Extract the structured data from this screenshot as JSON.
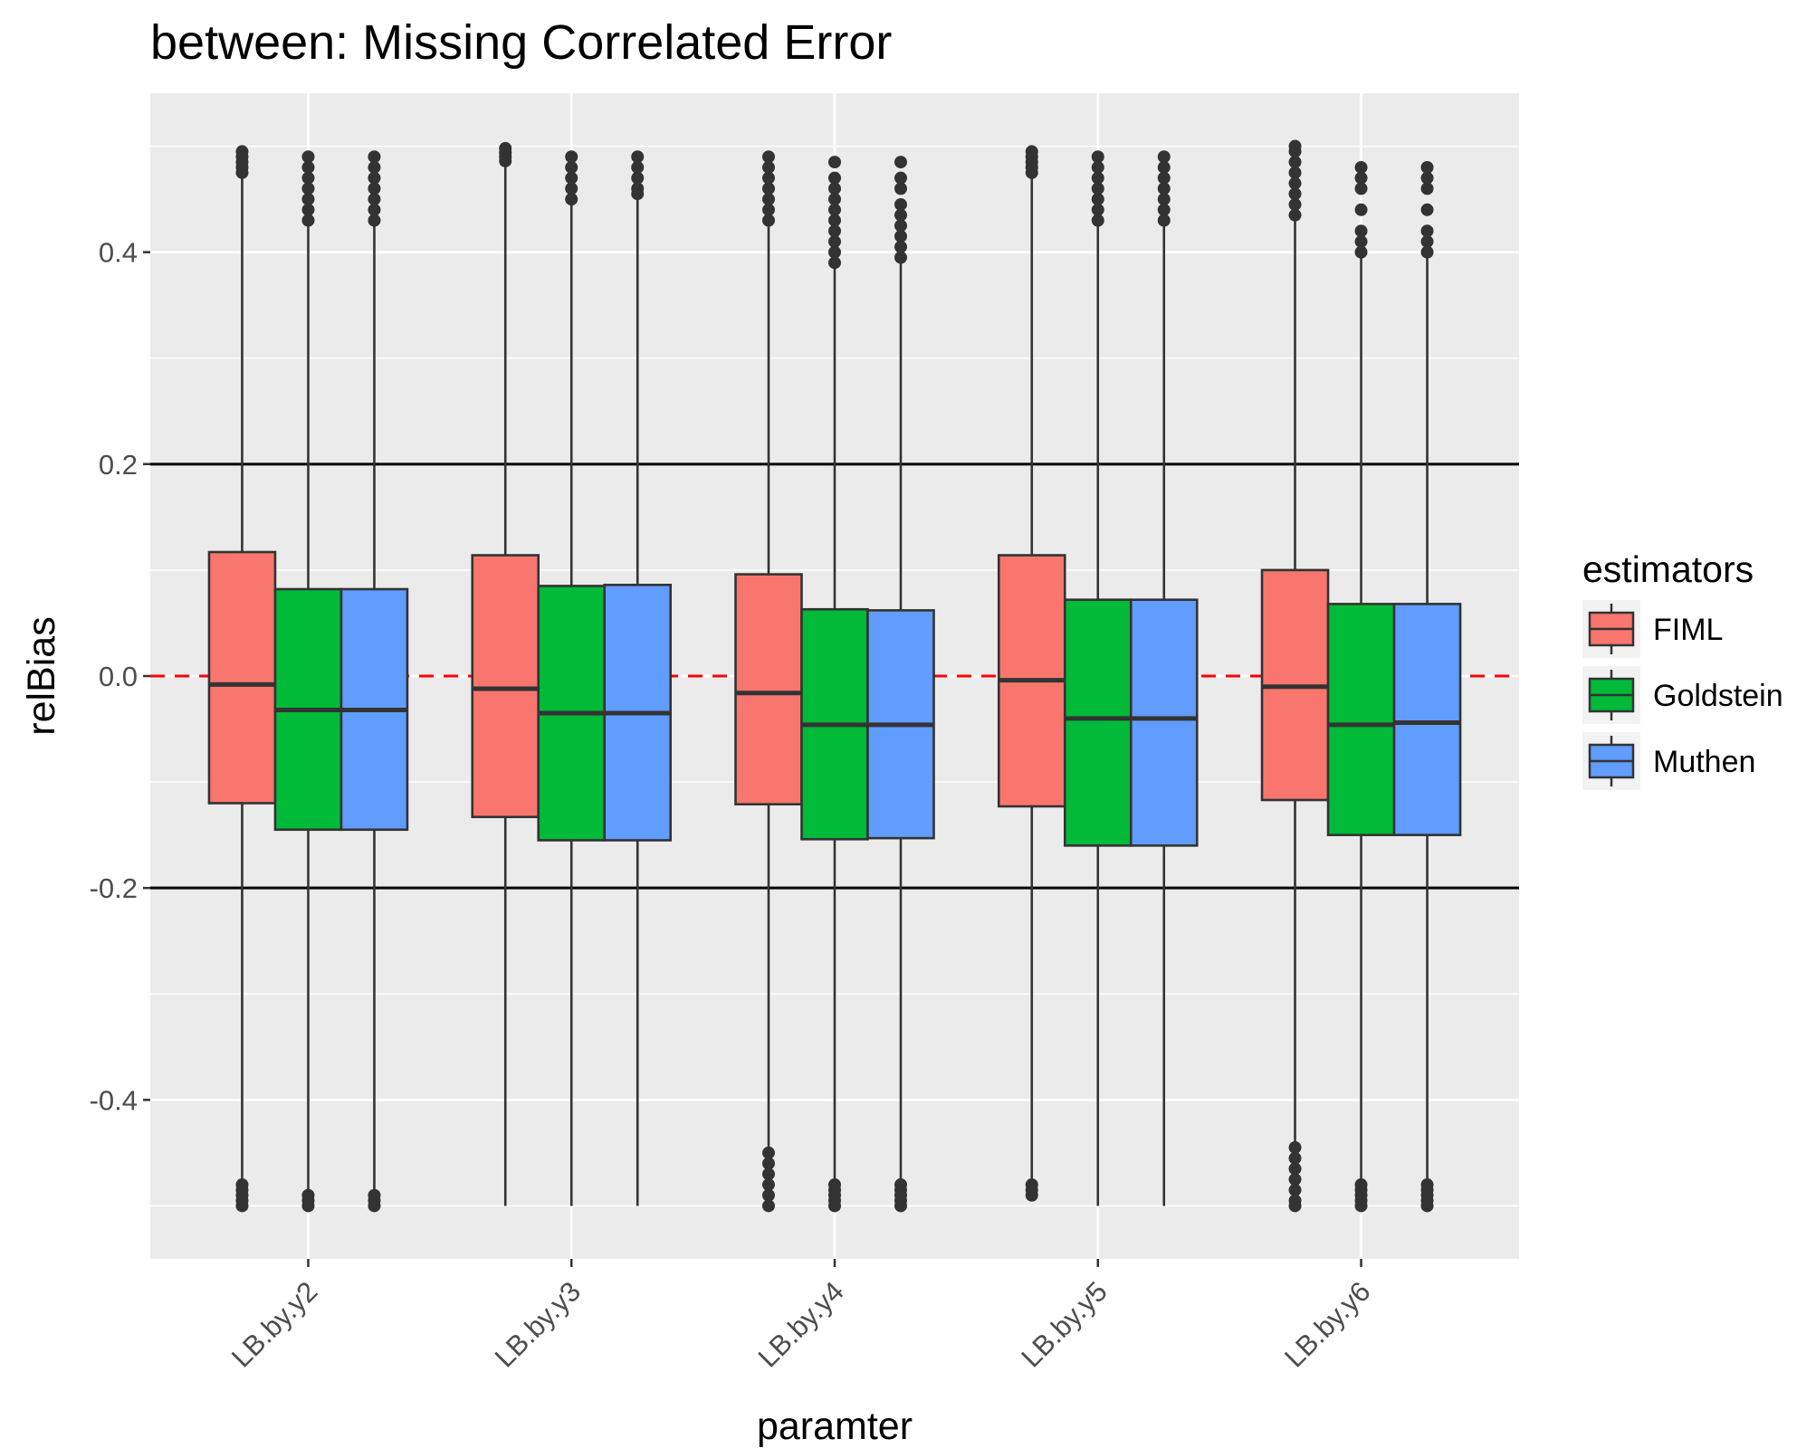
{
  "chart_data": {
    "type": "boxplot",
    "title": "between: Missing Correlated Error",
    "xlabel": "paramter",
    "ylabel": "relBias",
    "ylim": [
      -0.55,
      0.55
    ],
    "yticks": [
      -0.4,
      -0.2,
      0.0,
      0.2,
      0.4
    ],
    "ytick_labels": [
      "-0.4",
      "-0.2",
      "0.0",
      "0.2",
      "0.4"
    ],
    "reference_lines": [
      {
        "y": 0.2,
        "color": "#000000",
        "style": "solid"
      },
      {
        "y": -0.2,
        "color": "#000000",
        "style": "solid"
      },
      {
        "y": 0.0,
        "color": "#ff0000",
        "style": "dashed"
      }
    ],
    "categories": [
      "LB.by.y2",
      "LB.by.y3",
      "LB.by.y4",
      "LB.by.y5",
      "LB.by.y6"
    ],
    "legend": {
      "title": "estimators",
      "position": "right",
      "entries": [
        {
          "name": "FIML",
          "color": "#f8766d"
        },
        {
          "name": "Goldstein",
          "color": "#00ba38"
        },
        {
          "name": "Muthen",
          "color": "#619cff"
        }
      ]
    },
    "series": [
      {
        "name": "FIML",
        "color": "#f8766d",
        "boxes": [
          {
            "q1": -0.12,
            "median": -0.008,
            "q3": 0.117,
            "whisker_low": -0.478,
            "whisker_high": 0.472,
            "outliers": [
              0.475,
              0.48,
              0.485,
              0.49,
              0.495,
              -0.48,
              -0.485,
              -0.49,
              -0.495,
              -0.5
            ]
          },
          {
            "q1": -0.133,
            "median": -0.012,
            "q3": 0.114,
            "whisker_low": -0.5,
            "whisker_high": 0.483,
            "outliers": [
              0.486,
              0.49,
              0.494,
              0.498
            ]
          },
          {
            "q1": -0.121,
            "median": -0.016,
            "q3": 0.096,
            "whisker_low": -0.445,
            "whisker_high": 0.425,
            "outliers": [
              0.43,
              0.44,
              0.45,
              0.46,
              0.47,
              0.48,
              0.49,
              -0.45,
              -0.46,
              -0.47,
              -0.48,
              -0.49,
              -0.5
            ]
          },
          {
            "q1": -0.123,
            "median": -0.004,
            "q3": 0.114,
            "whisker_low": -0.478,
            "whisker_high": 0.47,
            "outliers": [
              0.475,
              0.48,
              0.485,
              0.49,
              0.495,
              -0.48,
              -0.485,
              -0.49
            ]
          },
          {
            "q1": -0.117,
            "median": -0.01,
            "q3": 0.1,
            "whisker_low": -0.44,
            "whisker_high": 0.43,
            "outliers": [
              0.435,
              0.445,
              0.455,
              0.465,
              0.475,
              0.485,
              0.495,
              0.5,
              -0.445,
              -0.455,
              -0.465,
              -0.475,
              -0.485,
              -0.495,
              -0.5
            ]
          }
        ]
      },
      {
        "name": "Goldstein",
        "color": "#00ba38",
        "boxes": [
          {
            "q1": -0.145,
            "median": -0.032,
            "q3": 0.082,
            "whisker_low": -0.49,
            "whisker_high": 0.425,
            "outliers": [
              0.43,
              0.44,
              0.45,
              0.46,
              0.47,
              0.48,
              0.49,
              -0.49,
              -0.495,
              -0.5
            ]
          },
          {
            "q1": -0.155,
            "median": -0.035,
            "q3": 0.085,
            "whisker_low": -0.5,
            "whisker_high": 0.445,
            "outliers": [
              0.45,
              0.46,
              0.47,
              0.48,
              0.49
            ]
          },
          {
            "q1": -0.154,
            "median": -0.046,
            "q3": 0.063,
            "whisker_low": -0.478,
            "whisker_high": 0.385,
            "outliers": [
              0.39,
              0.4,
              0.41,
              0.42,
              0.43,
              0.44,
              0.45,
              0.46,
              0.47,
              0.485,
              -0.48,
              -0.485,
              -0.49,
              -0.495,
              -0.5
            ]
          },
          {
            "q1": -0.16,
            "median": -0.04,
            "q3": 0.072,
            "whisker_low": -0.5,
            "whisker_high": 0.425,
            "outliers": [
              0.43,
              0.44,
              0.45,
              0.46,
              0.47,
              0.48,
              0.49
            ]
          },
          {
            "q1": -0.15,
            "median": -0.046,
            "q3": 0.068,
            "whisker_low": -0.475,
            "whisker_high": 0.395,
            "outliers": [
              0.4,
              0.41,
              0.42,
              0.44,
              0.46,
              0.47,
              0.48,
              -0.48,
              -0.485,
              -0.49,
              -0.495,
              -0.5
            ]
          }
        ]
      },
      {
        "name": "Muthen",
        "color": "#619cff",
        "boxes": [
          {
            "q1": -0.145,
            "median": -0.032,
            "q3": 0.082,
            "whisker_low": -0.49,
            "whisker_high": 0.425,
            "outliers": [
              0.43,
              0.44,
              0.45,
              0.46,
              0.47,
              0.48,
              0.49,
              -0.49,
              -0.495,
              -0.5
            ]
          },
          {
            "q1": -0.155,
            "median": -0.035,
            "q3": 0.086,
            "whisker_low": -0.5,
            "whisker_high": 0.452,
            "outliers": [
              0.455,
              0.46,
              0.47,
              0.48,
              0.49
            ]
          },
          {
            "q1": -0.153,
            "median": -0.046,
            "q3": 0.062,
            "whisker_low": -0.478,
            "whisker_high": 0.39,
            "outliers": [
              0.395,
              0.405,
              0.415,
              0.425,
              0.435,
              0.445,
              0.46,
              0.47,
              0.485,
              -0.48,
              -0.485,
              -0.49,
              -0.495,
              -0.5
            ]
          },
          {
            "q1": -0.16,
            "median": -0.04,
            "q3": 0.072,
            "whisker_low": -0.5,
            "whisker_high": 0.425,
            "outliers": [
              0.43,
              0.44,
              0.45,
              0.46,
              0.47,
              0.48,
              0.49
            ]
          },
          {
            "q1": -0.15,
            "median": -0.044,
            "q3": 0.068,
            "whisker_low": -0.475,
            "whisker_high": 0.395,
            "outliers": [
              0.4,
              0.41,
              0.42,
              0.44,
              0.46,
              0.47,
              0.48,
              -0.48,
              -0.485,
              -0.49,
              -0.495,
              -0.5
            ]
          }
        ]
      }
    ]
  }
}
